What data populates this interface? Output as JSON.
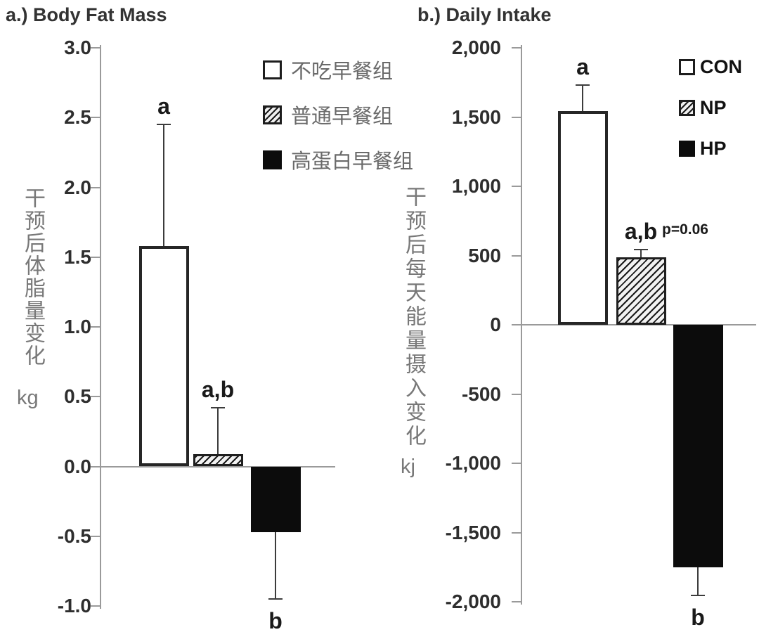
{
  "figure": {
    "background_color": "#ffffff",
    "text_color": "#333333",
    "axis_color": "#9a9a9a",
    "bar_fill_black": "#0c0c0c"
  },
  "chart_data": [
    {
      "type": "bar",
      "panel": "a",
      "title": "a.) Body Fat Mass",
      "ylabel": "干预后体脂量变化",
      "unit": "kg",
      "ylim": [
        -1.0,
        3.0
      ],
      "yticks": [
        3.0,
        2.5,
        2.0,
        1.5,
        1.0,
        0.5,
        0.0,
        -0.5,
        -1.0
      ],
      "ytick_labels": [
        "3.0",
        "2.5",
        "2.0",
        "1.5",
        "1.0",
        "0.5",
        "0.0",
        "-0.5",
        "-1.0"
      ],
      "categories": [
        "不吃早餐组",
        "普通早餐组",
        "高蛋白早餐组"
      ],
      "ids": [
        "con",
        "np",
        "hp"
      ],
      "bar_styles": [
        "white",
        "hatched",
        "black"
      ],
      "values": [
        1.58,
        0.09,
        -0.47
      ],
      "error_tips": [
        2.45,
        0.42,
        -0.95
      ],
      "sig_labels": [
        "a",
        "a,b",
        "b"
      ],
      "legend": [
        {
          "label": "不吃早餐组",
          "style": "white"
        },
        {
          "label": "普通早餐组",
          "style": "hatched"
        },
        {
          "label": "高蛋白早餐组",
          "style": "black"
        }
      ],
      "legend_position": "upper-right-inside",
      "grid": false
    },
    {
      "type": "bar",
      "panel": "b",
      "title": "b.) Daily Intake",
      "ylabel": "干预后每天能量摄入变化",
      "unit": "kj",
      "ylim": [
        -2000,
        2000
      ],
      "yticks": [
        2000,
        1500,
        1000,
        500,
        0,
        -500,
        -1000,
        -1500,
        -2000
      ],
      "ytick_labels": [
        "2,000",
        "1,500",
        "1,000",
        "500",
        "0",
        "-500",
        "-1,000",
        "-1,500",
        "-2,000"
      ],
      "categories": [
        "CON",
        "NP",
        "HP"
      ],
      "ids": [
        "con",
        "np",
        "hp"
      ],
      "bar_styles": [
        "white",
        "hatched",
        "black"
      ],
      "values": [
        1545,
        485,
        -1750
      ],
      "error_tips": [
        1730,
        545,
        -1955
      ],
      "sig_labels": [
        "a",
        "a,b",
        "b"
      ],
      "p_annotation": {
        "bar_index": 1,
        "text": "p=0.06"
      },
      "legend": [
        {
          "label": "CON",
          "style": "white"
        },
        {
          "label": "NP",
          "style": "hatched"
        },
        {
          "label": "HP",
          "style": "black"
        }
      ],
      "legend_position": "upper-right-inside",
      "grid": false
    }
  ]
}
